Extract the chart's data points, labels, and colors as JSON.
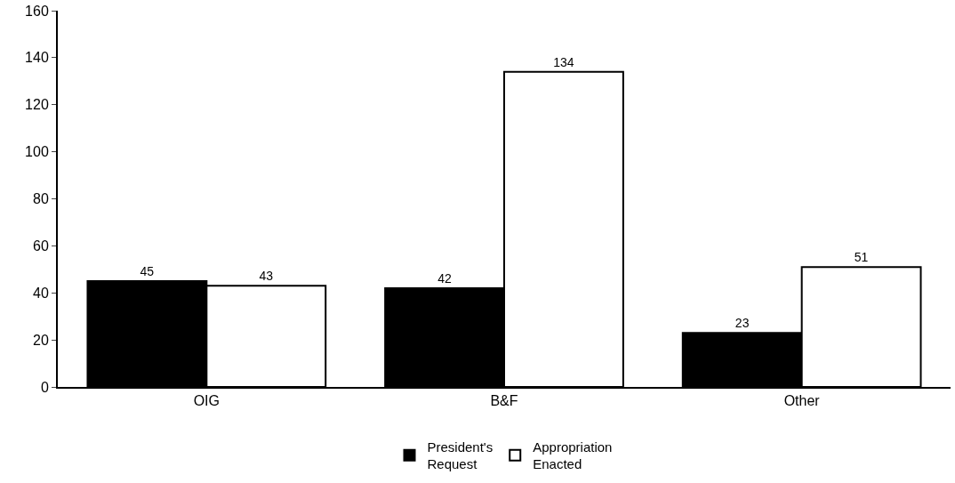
{
  "chart_data": {
    "type": "bar",
    "categories": [
      "OIG",
      "B&F",
      "Other"
    ],
    "series": [
      {
        "name": "President's Request",
        "color": "#000000",
        "values": [
          45,
          42,
          23
        ]
      },
      {
        "name": "Appropriation Enacted",
        "color": "#ffffff",
        "values": [
          43,
          134,
          51
        ]
      }
    ],
    "ylim": [
      0,
      160
    ],
    "yticks": [
      0,
      20,
      40,
      60,
      80,
      100,
      120,
      140,
      160
    ],
    "data_labels": true,
    "legend": "bottom"
  }
}
